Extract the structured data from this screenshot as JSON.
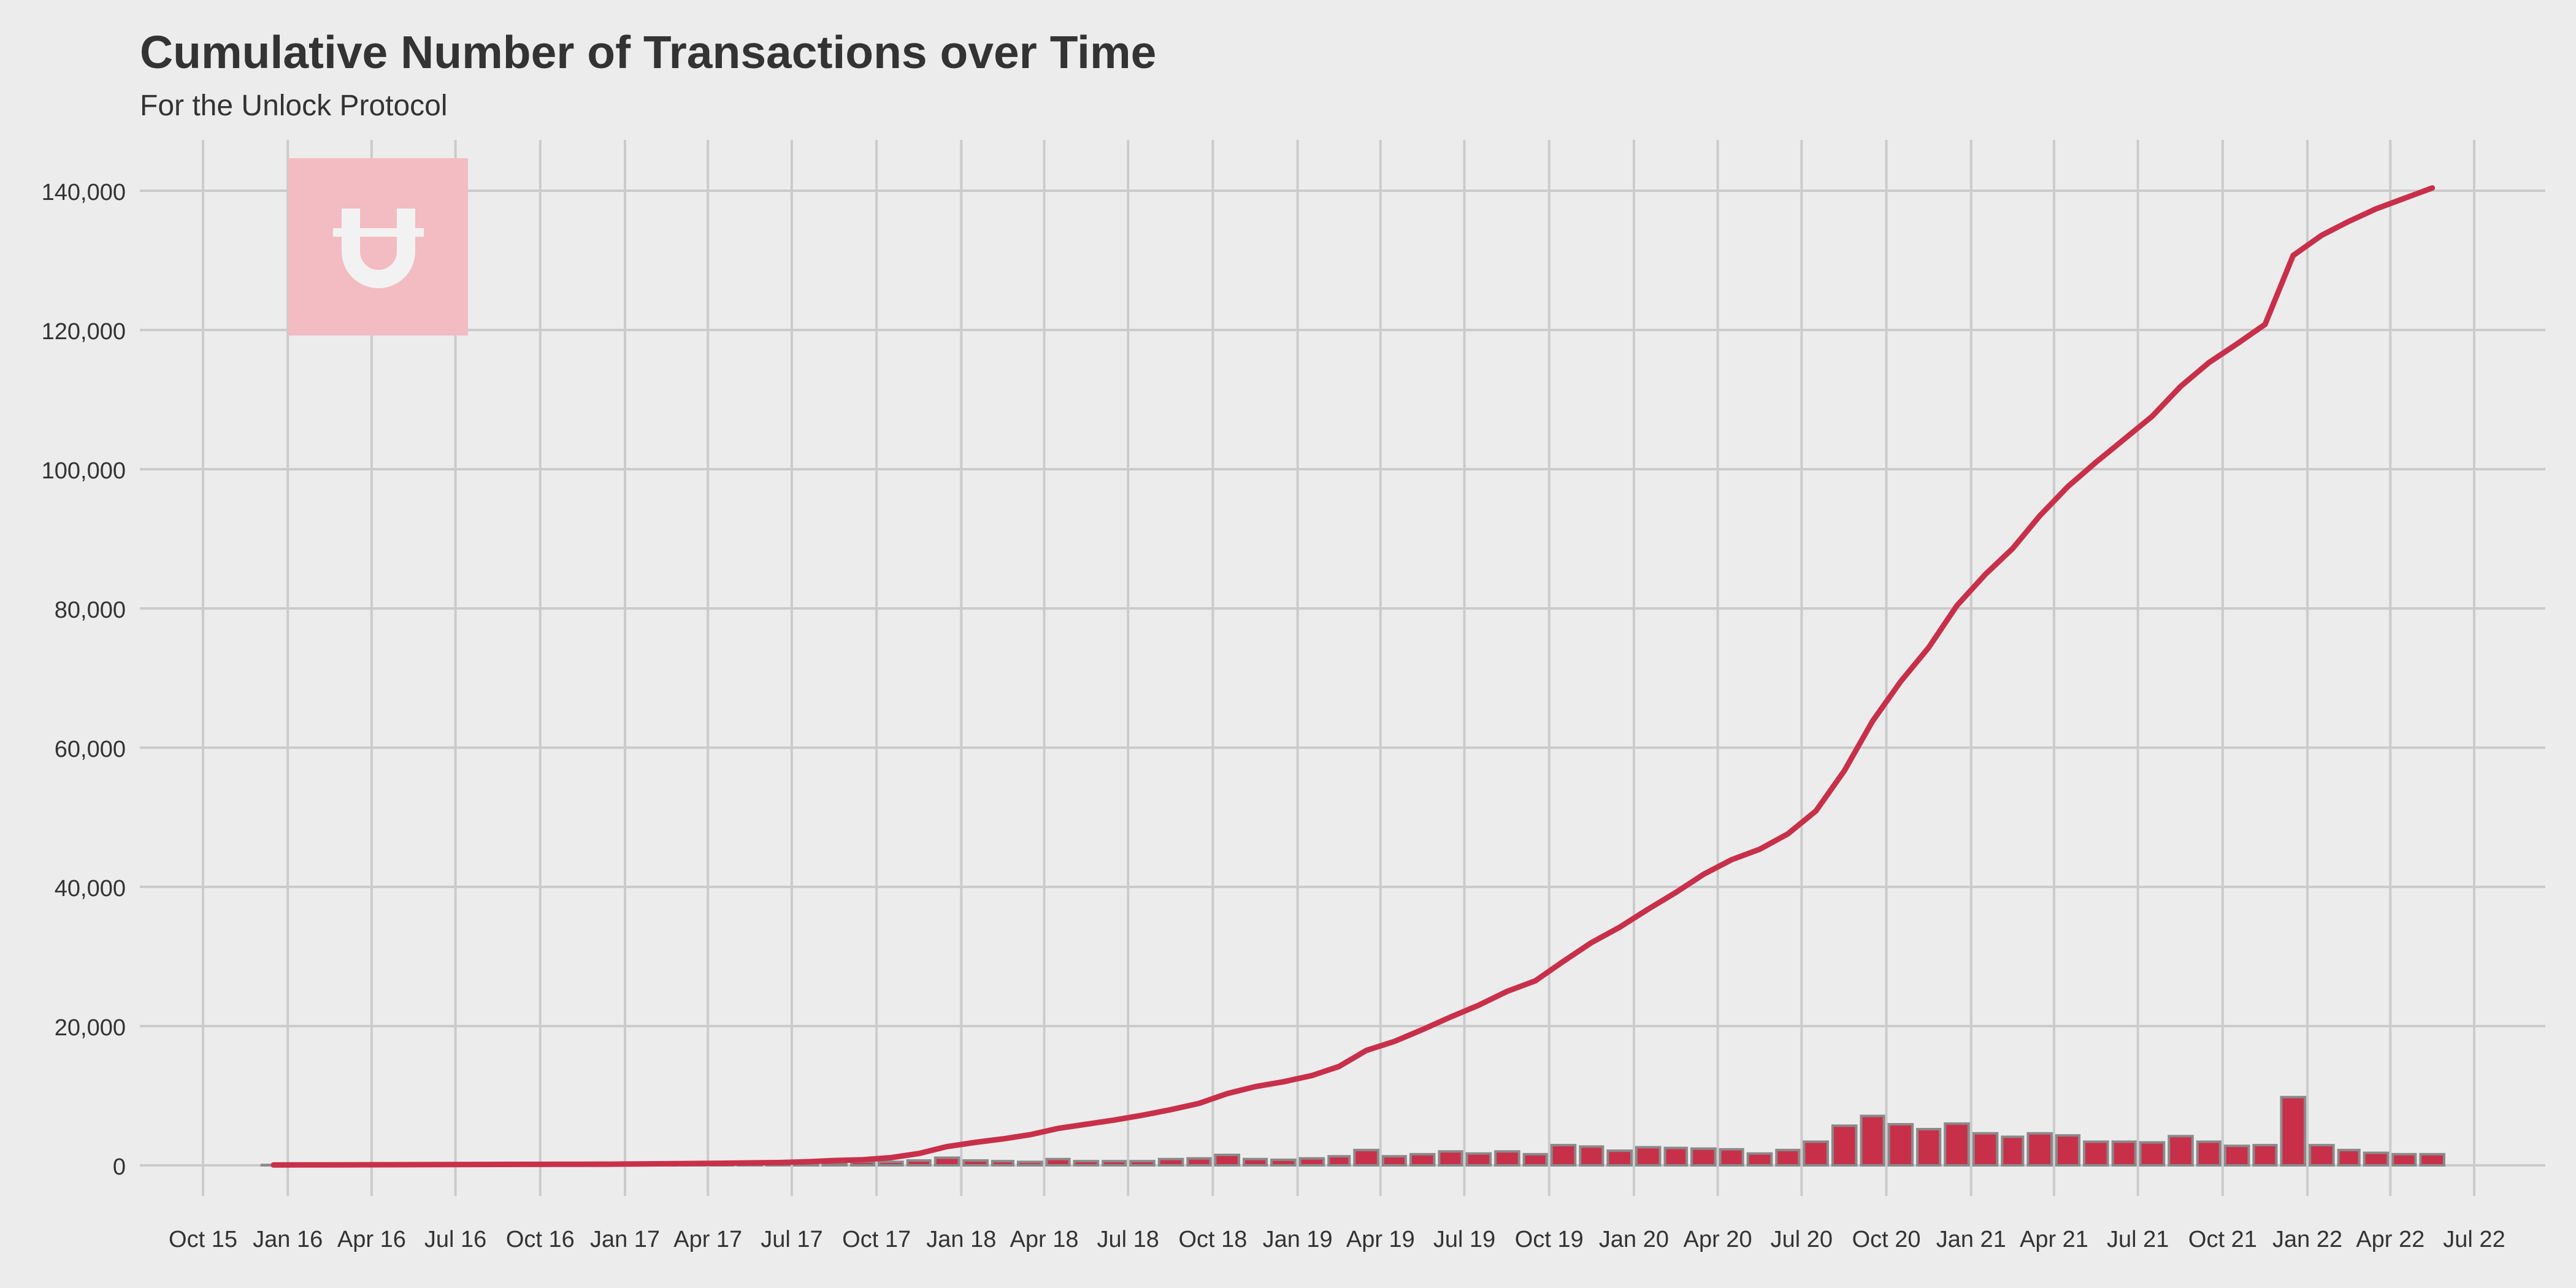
{
  "chart_data": {
    "type": "bar+line",
    "title": "Cumulative Number of Transactions over Time",
    "subtitle": "For the Unlock Protocol",
    "xlabel": "",
    "ylabel": "",
    "x_axis_type": "date",
    "xlim": [
      "2015-10-01",
      "2022-07-01"
    ],
    "ylim": [
      -6000,
      146000
    ],
    "x_ticks": [
      {
        "date": "2015-10-01",
        "label": "Oct 15"
      },
      {
        "date": "2016-01-01",
        "label": "Jan 16"
      },
      {
        "date": "2016-04-01",
        "label": "Apr 16"
      },
      {
        "date": "2016-07-01",
        "label": "Jul 16"
      },
      {
        "date": "2016-10-01",
        "label": "Oct 16"
      },
      {
        "date": "2017-01-01",
        "label": "Jan 17"
      },
      {
        "date": "2017-04-01",
        "label": "Apr 17"
      },
      {
        "date": "2017-07-01",
        "label": "Jul 17"
      },
      {
        "date": "2017-10-01",
        "label": "Oct 17"
      },
      {
        "date": "2018-01-01",
        "label": "Jan 18"
      },
      {
        "date": "2018-04-01",
        "label": "Apr 18"
      },
      {
        "date": "2018-07-01",
        "label": "Jul 18"
      },
      {
        "date": "2018-10-01",
        "label": "Oct 18"
      },
      {
        "date": "2019-01-01",
        "label": "Jan 19"
      },
      {
        "date": "2019-04-01",
        "label": "Apr 19"
      },
      {
        "date": "2019-07-01",
        "label": "Jul 19"
      },
      {
        "date": "2019-10-01",
        "label": "Oct 19"
      },
      {
        "date": "2020-01-01",
        "label": "Jan 20"
      },
      {
        "date": "2020-04-01",
        "label": "Apr 20"
      },
      {
        "date": "2020-07-01",
        "label": "Jul 20"
      },
      {
        "date": "2020-10-01",
        "label": "Oct 20"
      },
      {
        "date": "2021-01-01",
        "label": "Jan 21"
      },
      {
        "date": "2021-04-01",
        "label": "Apr 21"
      },
      {
        "date": "2021-07-01",
        "label": "Jul 21"
      },
      {
        "date": "2021-10-01",
        "label": "Oct 21"
      },
      {
        "date": "2022-01-01",
        "label": "Jan 22"
      },
      {
        "date": "2022-04-01",
        "label": "Apr 22"
      },
      {
        "date": "2022-07-01",
        "label": "Jul 22"
      }
    ],
    "y_ticks": [
      {
        "value": 0,
        "label": "0"
      },
      {
        "value": 20000,
        "label": "20,000"
      },
      {
        "value": 40000,
        "label": "40,000"
      },
      {
        "value": 60000,
        "label": "60,000"
      },
      {
        "value": 80000,
        "label": "80,000"
      },
      {
        "value": 100000,
        "label": "100,000"
      },
      {
        "value": 120000,
        "label": "120,000"
      },
      {
        "value": 140000,
        "label": "140,000"
      }
    ],
    "grid": true,
    "legend": "none",
    "colors": {
      "series": "#c8304a",
      "bar_outline": "#8a8a8a",
      "background": "#ececec",
      "grid": "#cbcbcb",
      "text": "#333333",
      "logo_box": "#f2bcc2",
      "logo_glyph": "#f2f2f2"
    },
    "logo": {
      "icon": "unlock-logo-icon",
      "glyph": "Ʉ"
    },
    "months": [
      "2015-12",
      "2016-01",
      "2016-02",
      "2016-03",
      "2016-04",
      "2016-05",
      "2016-06",
      "2016-07",
      "2016-08",
      "2016-09",
      "2016-10",
      "2016-11",
      "2016-12",
      "2017-01",
      "2017-02",
      "2017-03",
      "2017-04",
      "2017-05",
      "2017-06",
      "2017-07",
      "2017-08",
      "2017-09",
      "2017-10",
      "2017-11",
      "2017-12",
      "2018-01",
      "2018-02",
      "2018-03",
      "2018-04",
      "2018-05",
      "2018-06",
      "2018-07",
      "2018-08",
      "2018-09",
      "2018-10",
      "2018-11",
      "2018-12",
      "2019-01",
      "2019-02",
      "2019-03",
      "2019-04",
      "2019-05",
      "2019-06",
      "2019-07",
      "2019-08",
      "2019-09",
      "2019-10",
      "2019-11",
      "2019-12",
      "2020-01",
      "2020-02",
      "2020-03",
      "2020-04",
      "2020-05",
      "2020-06",
      "2020-07",
      "2020-08",
      "2020-09",
      "2020-10",
      "2020-11",
      "2020-12",
      "2021-01",
      "2021-02",
      "2021-03",
      "2021-04",
      "2021-05",
      "2021-06",
      "2021-07",
      "2021-08",
      "2021-09",
      "2021-10",
      "2021-11",
      "2021-12",
      "2022-01",
      "2022-02",
      "2022-03",
      "2022-04",
      "2022-05"
    ],
    "series": [
      {
        "type": "bar",
        "values": [
          50,
          60,
          60,
          60,
          60,
          60,
          60,
          80,
          80,
          80,
          80,
          80,
          100,
          120,
          150,
          150,
          150,
          200,
          250,
          300,
          400,
          500,
          500,
          700,
          1100,
          700,
          600,
          500,
          900,
          600,
          600,
          600,
          900,
          1000,
          1500,
          900,
          800,
          1000,
          1300,
          2200,
          1300,
          1600,
          2000,
          1700,
          2000,
          1600,
          2900,
          2700,
          2100,
          2600,
          2500,
          2400,
          2300,
          1700,
          2200,
          3400,
          5700,
          7100,
          5900,
          5200,
          6000,
          4600,
          4100,
          4600,
          4300,
          3400,
          3400,
          3300,
          4200,
          3400,
          2800,
          2900,
          9800,
          2900,
          2200,
          1800,
          1600,
          1600
        ]
      },
      {
        "type": "line",
        "values": [
          50,
          60,
          70,
          80,
          90,
          100,
          110,
          120,
          130,
          140,
          150,
          160,
          170,
          200,
          230,
          260,
          300,
          350,
          400,
          500,
          700,
          800,
          1100,
          1700,
          2700,
          3300,
          3800,
          4400,
          5300,
          5900,
          6500,
          7200,
          8000,
          8900,
          10300,
          11300,
          12000,
          12900,
          14200,
          16500,
          17800,
          19500,
          21300,
          23000,
          25000,
          26500,
          29300,
          32000,
          34200,
          36800,
          39200,
          41800,
          43900,
          45400,
          47600,
          50900,
          56700,
          63800,
          69500,
          74400,
          80400,
          84900,
          88600,
          93300,
          97500,
          101000,
          104300,
          107600,
          111900,
          115300,
          118000,
          120800,
          130700,
          133600,
          135600,
          137400,
          138900,
          140400
        ]
      }
    ]
  }
}
